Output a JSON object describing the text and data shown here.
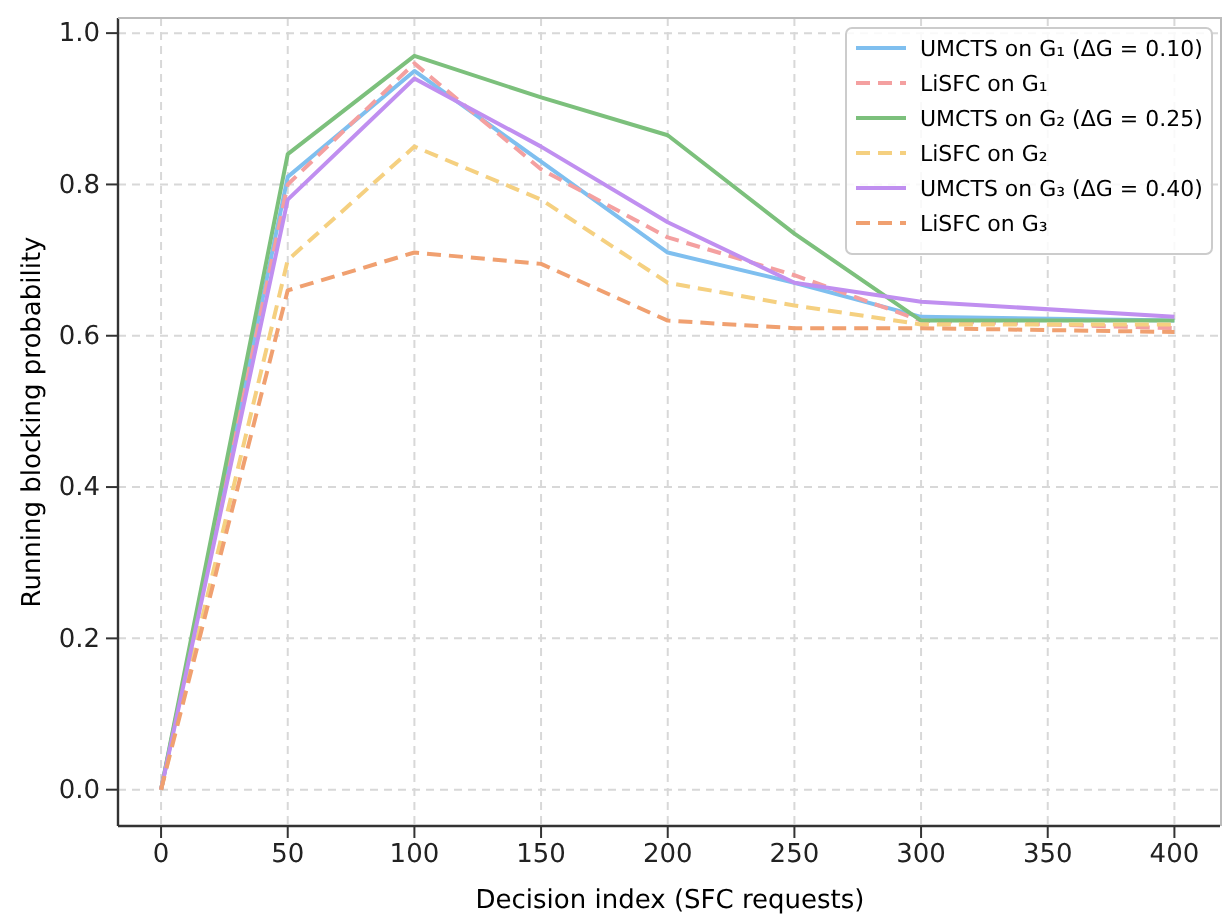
{
  "chart_data": {
    "type": "line",
    "xlabel": "Decision index (SFC requests)",
    "ylabel": "Running blocking probability",
    "x": [
      0,
      50,
      100,
      150,
      200,
      250,
      300,
      400
    ],
    "xlim": [
      -17,
      418
    ],
    "xticks": [
      0,
      50,
      100,
      150,
      200,
      250,
      300,
      350,
      400
    ],
    "ylim": [
      -0.048,
      1.02
    ],
    "yticks": [
      {
        "value": 0,
        "label": "0.0"
      },
      {
        "value": 0.2,
        "label": "0.2"
      },
      {
        "value": 0.4,
        "label": "0.4"
      },
      {
        "value": 0.6,
        "label": "0.6"
      },
      {
        "value": 0.8,
        "label": "0.8"
      },
      {
        "value": 1,
        "label": "1.0"
      }
    ],
    "grid": true,
    "legend": "top right",
    "marker": "none",
    "series": [
      {
        "name": "UMCTS on G₁ (ΔG = 0.10)",
        "color": "#7fbfef",
        "line_style": "solid",
        "values": [
          0,
          0.81,
          0.95,
          0.83,
          0.71,
          0.67,
          0.625,
          0.62
        ]
      },
      {
        "name": "LiSFC on G₁",
        "color": "#f4a0a0",
        "line_style": "dashed",
        "values": [
          0,
          0.8,
          0.96,
          0.82,
          0.73,
          0.68,
          0.62,
          0.61
        ]
      },
      {
        "name": "UMCTS on G₂ (ΔG = 0.25)",
        "color": "#7cc07c",
        "line_style": "solid",
        "values": [
          0,
          0.84,
          0.97,
          0.915,
          0.865,
          0.735,
          0.62,
          0.62
        ]
      },
      {
        "name": "LiSFC on G₂",
        "color": "#f5d080",
        "line_style": "dashed",
        "values": [
          0,
          0.7,
          0.85,
          0.78,
          0.67,
          0.64,
          0.615,
          0.615
        ]
      },
      {
        "name": "UMCTS on G₃ (ΔG = 0.40)",
        "color": "#c08ff0",
        "line_style": "solid",
        "values": [
          0,
          0.78,
          0.94,
          0.85,
          0.75,
          0.67,
          0.645,
          0.625
        ]
      },
      {
        "name": "LiSFC on G₃",
        "color": "#f0a070",
        "line_style": "dashed",
        "values": [
          0,
          0.66,
          0.71,
          0.695,
          0.62,
          0.61,
          0.61,
          0.605
        ]
      }
    ]
  }
}
